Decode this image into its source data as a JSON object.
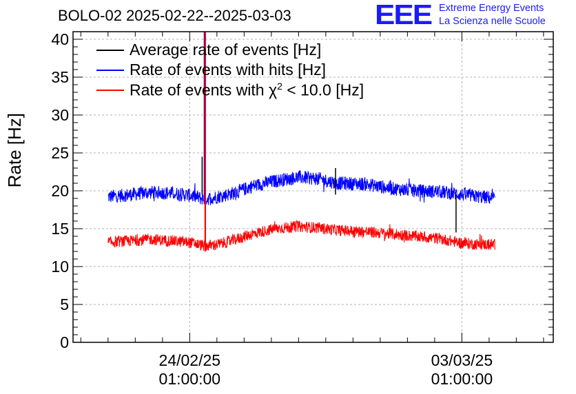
{
  "header": {
    "title": "BOLO-02 2025-02-22--2025-03-03",
    "logo": "EEE",
    "logo_line1": "Extreme Energy Events",
    "logo_line2": "La Scienza nelle Scuole"
  },
  "colors": {
    "average": "#000000",
    "hits": "#0000ff",
    "chi2": "#ff0000",
    "logo": "#1a1aff",
    "grid": "#b0b0b0"
  },
  "chart_data": {
    "type": "line",
    "title": "BOLO-02 2025-02-22--2025-03-03",
    "xlabel": "",
    "ylabel": "Rate [Hz]",
    "ylim": [
      0,
      41
    ],
    "yticks": [
      0,
      5,
      10,
      15,
      20,
      25,
      30,
      35,
      40
    ],
    "xlim_days": [
      -3.0,
      9.35
    ],
    "xticks": [
      {
        "day": 0,
        "date": "24/02/25",
        "time": "01:00:00"
      },
      {
        "day": 7,
        "date": "03/03/25",
        "time": "01:00:00"
      }
    ],
    "legend": [
      {
        "key": "average",
        "label": "Average rate of events [Hz]"
      },
      {
        "key": "hits",
        "label": "Rate of events with hits [Hz]"
      },
      {
        "key": "chi2",
        "label_prefix": "Rate of events with ",
        "label_chi": "χ",
        "label_exp": "2",
        "label_suffix": " < 10.0 [Hz]"
      }
    ],
    "grid": true,
    "legend_position": "top-left",
    "series": [
      {
        "name": "Rate of events with hits [Hz]",
        "key": "hits",
        "noise_amplitude": 0.9,
        "points": [
          [
            -2.1,
            19.2
          ],
          [
            -1.5,
            19.5
          ],
          [
            -1.0,
            19.8
          ],
          [
            -0.5,
            19.7
          ],
          [
            0.0,
            19.4
          ],
          [
            0.4,
            18.9
          ],
          [
            0.8,
            19.3
          ],
          [
            1.2,
            19.8
          ],
          [
            1.6,
            20.6
          ],
          [
            2.2,
            21.3
          ],
          [
            2.8,
            21.8
          ],
          [
            3.3,
            21.6
          ],
          [
            3.8,
            21.0
          ],
          [
            4.5,
            20.9
          ],
          [
            5.2,
            20.3
          ],
          [
            5.8,
            20.0
          ],
          [
            6.4,
            19.9
          ],
          [
            7.0,
            19.5
          ],
          [
            7.5,
            19.2
          ],
          [
            7.85,
            19.0
          ]
        ]
      },
      {
        "name": "Rate of events with χ2 < 10.0 [Hz]",
        "key": "chi2",
        "noise_amplitude": 0.75,
        "points": [
          [
            -2.1,
            13.2
          ],
          [
            -1.5,
            13.4
          ],
          [
            -1.0,
            13.6
          ],
          [
            -0.5,
            13.4
          ],
          [
            0.0,
            13.2
          ],
          [
            0.4,
            12.7
          ],
          [
            0.8,
            13.0
          ],
          [
            1.2,
            13.6
          ],
          [
            1.6,
            14.3
          ],
          [
            2.2,
            15.0
          ],
          [
            2.8,
            15.3
          ],
          [
            3.3,
            15.1
          ],
          [
            3.8,
            14.8
          ],
          [
            4.5,
            14.6
          ],
          [
            5.2,
            14.3
          ],
          [
            5.8,
            14.0
          ],
          [
            6.4,
            13.7
          ],
          [
            7.0,
            13.1
          ],
          [
            7.5,
            12.9
          ],
          [
            7.85,
            12.9
          ]
        ]
      },
      {
        "name": "Average rate of events [Hz]",
        "key": "average",
        "points": [
          [
            0.38,
            0
          ],
          [
            0.38,
            41
          ]
        ]
      }
    ],
    "spikes": [
      {
        "key": "hits",
        "day": 0.38,
        "value": 41
      },
      {
        "key": "chi2",
        "day": 0.4,
        "value": 41
      },
      {
        "key": "average",
        "day": 0.32,
        "value": 24.5
      },
      {
        "key": "average",
        "day": 3.75,
        "value": 23.0
      },
      {
        "key": "average",
        "day": 6.85,
        "value": 14.5
      }
    ]
  }
}
